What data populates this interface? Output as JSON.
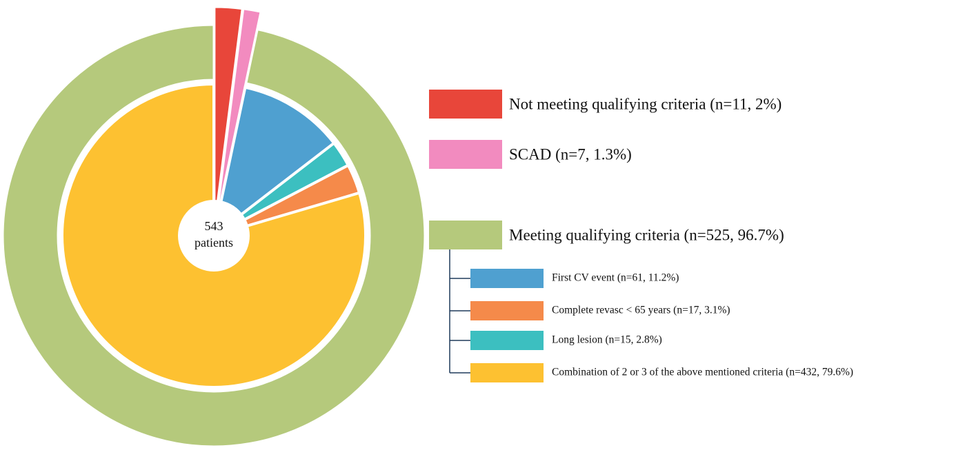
{
  "chart_data": {
    "type": "nested-pie",
    "center_label": [
      "543",
      "patients"
    ],
    "outer": {
      "labels": [
        "Not meeting qualifying criteria (n=11, 2%)",
        "SCAD (n=7, 1.3%)",
        "Meeting qualifying criteria (n=525, 96.7%)"
      ],
      "values": [
        11,
        7,
        525
      ],
      "colors": [
        "#e8463a",
        "#f28bbf",
        "#b5c97c"
      ]
    },
    "inner": {
      "labels": [
        "First CV event (n=61, 11.2%)",
        "Complete revasc < 65 years (n=17, 3.1%)",
        "Long lesion (n=15, 2.8%)",
        "Combination of 2 or 3 of the above mentioned criteria (n=432, 79.6%)"
      ],
      "values": [
        61,
        17,
        15,
        432
      ],
      "colors": [
        "#4fa0d0",
        "#f58a4a",
        "#3cbfc0",
        "#fdc131"
      ]
    }
  }
}
